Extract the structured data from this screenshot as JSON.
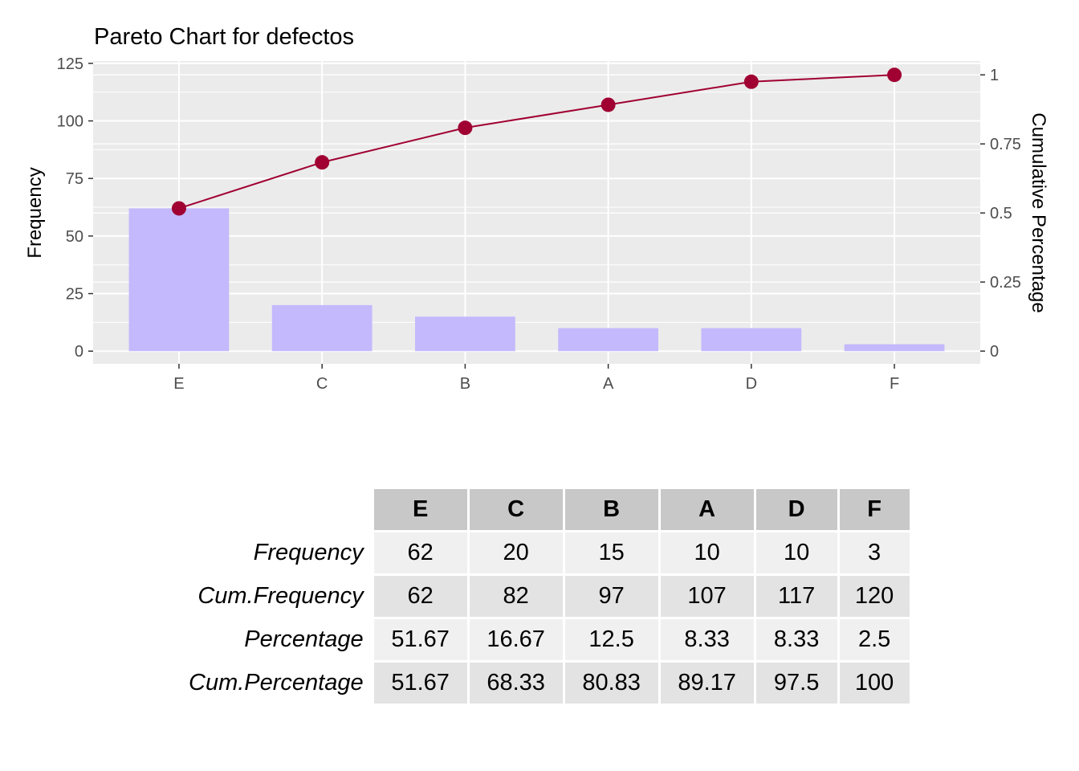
{
  "chart_data": {
    "type": "bar",
    "title": "Pareto Chart for defectos",
    "xlabel": "",
    "ylabel": "Frequency",
    "y2label": "Cumulative Percentage",
    "categories": [
      "E",
      "C",
      "B",
      "A",
      "D",
      "F"
    ],
    "values": [
      62,
      20,
      15,
      10,
      10,
      3
    ],
    "cumulative": [
      0.5167,
      0.6833,
      0.8083,
      0.8917,
      0.975,
      1.0
    ],
    "ylim": [
      -5.5,
      126
    ],
    "y2lim": [
      -0.046,
      1.05
    ],
    "yticks": [
      "0",
      "25",
      "50",
      "75",
      "100",
      "125"
    ],
    "y2ticks": [
      "0",
      "0.25",
      "0.5",
      "0.75",
      "1"
    ],
    "grid": true,
    "colors": {
      "bar": "#c4b9fd",
      "line": "#a00032",
      "panel": "#ebebeb",
      "grid": "#ffffff"
    }
  },
  "table": {
    "headers": [
      "E",
      "C",
      "B",
      "A",
      "D",
      "F"
    ],
    "rows": [
      {
        "label": "Frequency",
        "cells": [
          "62",
          "20",
          "15",
          "10",
          "10",
          "3"
        ]
      },
      {
        "label": "Cum.Frequency",
        "cells": [
          "62",
          "82",
          "97",
          "107",
          "117",
          "120"
        ]
      },
      {
        "label": "Percentage",
        "cells": [
          "51.67",
          "16.67",
          "12.5",
          "8.33",
          "8.33",
          "2.5"
        ]
      },
      {
        "label": "Cum.Percentage",
        "cells": [
          "51.67",
          "68.33",
          "80.83",
          "89.17",
          "97.5",
          "100"
        ]
      }
    ]
  }
}
